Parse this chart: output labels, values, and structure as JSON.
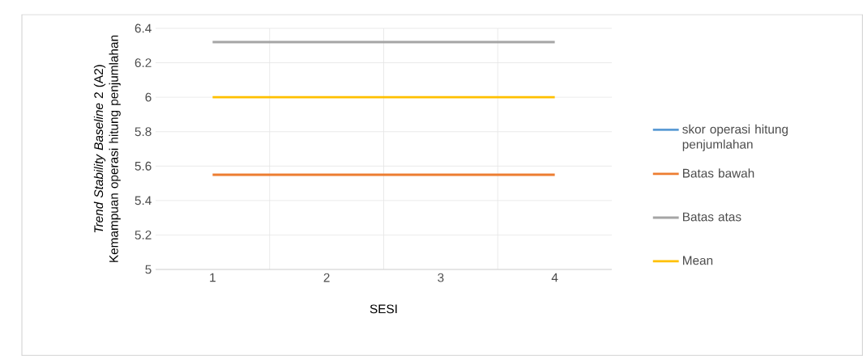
{
  "chart_data": {
    "type": "line",
    "categories": [
      "1",
      "2",
      "3",
      "4"
    ],
    "xlabel": "SESI",
    "ylabel": "*Trend Stability Baseline* 2 (A2) Kemampuan operasi hitung penjumlahan",
    "series": [
      {
        "name": "skor operasi hitung penjumlahan",
        "color": "#5b9bd5",
        "values": [
          null,
          null,
          null,
          null
        ]
      },
      {
        "name": "Batas bawah",
        "color": "#ed7d31",
        "values": [
          5.55,
          5.55,
          5.55,
          5.55
        ]
      },
      {
        "name": "Batas atas",
        "color": "#a5a5a5",
        "values": [
          6.32,
          6.32,
          6.32,
          6.32
        ]
      },
      {
        "name": "Mean",
        "color": "#ffc000",
        "values": [
          6,
          6,
          6,
          6
        ]
      }
    ],
    "ylim": [
      5,
      6.4
    ],
    "yticks": [
      5,
      5.2,
      5.4,
      5.6,
      5.8,
      6,
      6.2,
      6.4
    ],
    "grid": true,
    "legend": "right",
    "marker": "none",
    "line_style": "solid"
  }
}
